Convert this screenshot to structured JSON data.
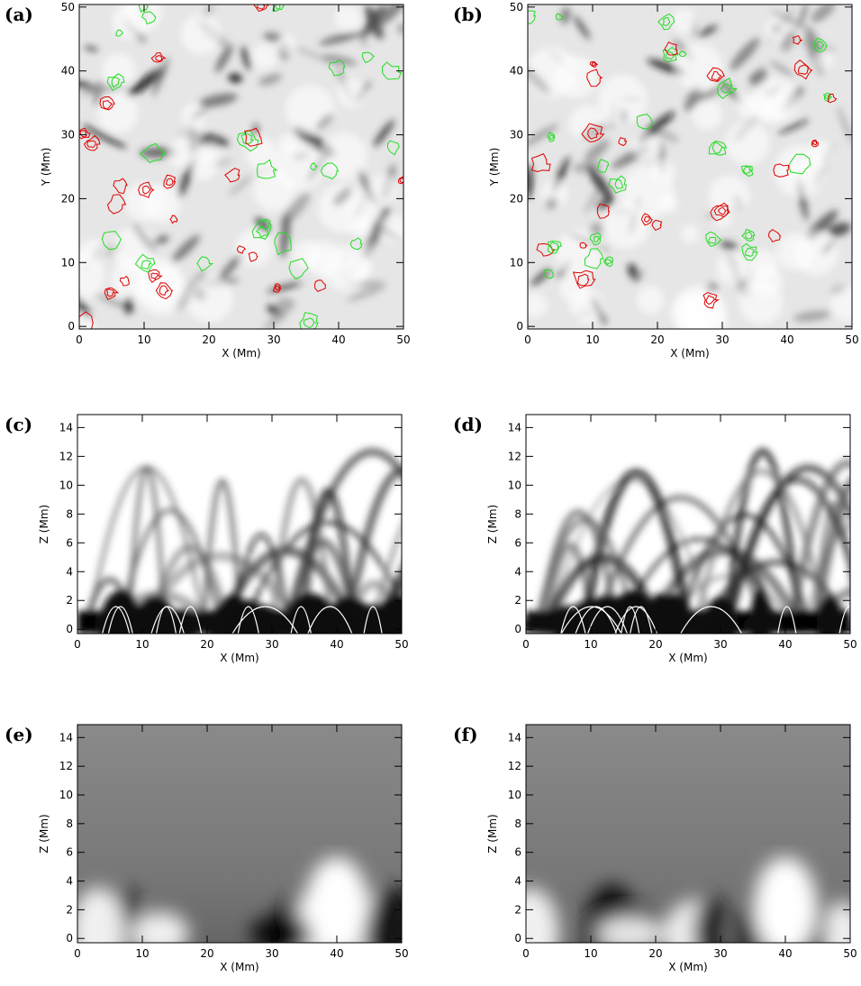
{
  "chart_data": [
    {
      "type": "image",
      "panel": "(a)",
      "xlabel": "X (Mm)",
      "ylabel": "Y (Mm)",
      "xlim": [
        0,
        50
      ],
      "ylim": [
        -0.4,
        50.4
      ],
      "xticks": [
        0,
        10,
        20,
        30,
        40,
        50
      ],
      "yticks": [
        0,
        10,
        20,
        30,
        40,
        50
      ],
      "style": "photosphere"
    },
    {
      "type": "image",
      "panel": "(b)",
      "xlabel": "X (Mm)",
      "ylabel": "Y (Mm)",
      "xlim": [
        0,
        50
      ],
      "ylim": [
        -0.4,
        50.4
      ],
      "xticks": [
        0,
        10,
        20,
        30,
        40,
        50
      ],
      "yticks": [
        0,
        10,
        20,
        30,
        40,
        50
      ],
      "style": "photosphere"
    },
    {
      "type": "image",
      "panel": "(c)",
      "xlabel": "X (Mm)",
      "ylabel": "Z (Mm)",
      "xlim": [
        0,
        50
      ],
      "ylim": [
        -0.3,
        14.9
      ],
      "xticks": [
        0,
        10,
        20,
        30,
        40,
        50
      ],
      "yticks": [
        0,
        2,
        4,
        6,
        8,
        10,
        12,
        14
      ],
      "style": "loops"
    },
    {
      "type": "image",
      "panel": "(d)",
      "xlabel": "X (Mm)",
      "ylabel": "Z (Mm)",
      "xlim": [
        0,
        50
      ],
      "ylim": [
        -0.3,
        14.9
      ],
      "xticks": [
        0,
        10,
        20,
        30,
        40,
        50
      ],
      "yticks": [
        0,
        2,
        4,
        6,
        8,
        10,
        12,
        14
      ],
      "style": "loops"
    },
    {
      "type": "image",
      "panel": "(e)",
      "xlabel": "X (Mm)",
      "ylabel": "Z (Mm)",
      "xlim": [
        0,
        50
      ],
      "ylim": [
        -0.3,
        14.9
      ],
      "xticks": [
        0,
        10,
        20,
        30,
        40,
        50
      ],
      "yticks": [
        0,
        2,
        4,
        6,
        8,
        10,
        12,
        14
      ],
      "style": "field"
    },
    {
      "type": "image",
      "panel": "(f)",
      "xlabel": "X (Mm)",
      "ylabel": "Z (Mm)",
      "xlim": [
        0,
        50
      ],
      "ylim": [
        -0.3,
        14.9
      ],
      "xticks": [
        0,
        10,
        20,
        30,
        40,
        50
      ],
      "yticks": [
        0,
        2,
        4,
        6,
        8,
        10,
        12,
        14
      ],
      "style": "field"
    }
  ]
}
